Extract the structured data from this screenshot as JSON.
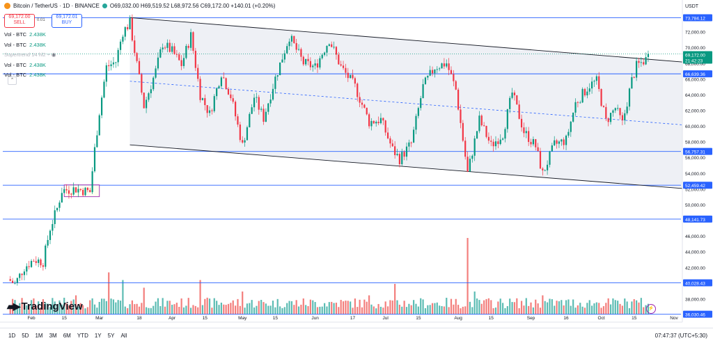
{
  "header": {
    "symbol": "Bitcoin / TetherUS · 1D · BINANCE",
    "ohlc": "O69,032.00 H69,519.52 L68,972.56 C69,172.00 +140.01 (+0.20%)"
  },
  "trade": {
    "sell_price": "69,172.00",
    "sell_label": "SELL",
    "spread": "0.01",
    "buy_price": "69,172.01",
    "buy_label": "BUY"
  },
  "indicators": [
    {
      "label": "Vol - BTC",
      "value": "2.438K"
    },
    {
      "label": "Vol - BTC",
      "value": "2.438K"
    },
    {
      "label": "Supertrend 14 hl2 ÷",
      "value": ""
    },
    {
      "label": "Vol - BTC",
      "value": "2.438K"
    },
    {
      "label": "Vol - BTC",
      "value": "2.438K"
    }
  ],
  "currency": "USDT",
  "logo_text": "TradingView",
  "ranges": [
    "1D",
    "5D",
    "1M",
    "3M",
    "6M",
    "YTD",
    "1Y",
    "5Y",
    "All"
  ],
  "clock": "07:47:37 (UTC+5:30)",
  "colors": {
    "up": "#089981",
    "down": "#f23645",
    "level": "#2962ff",
    "channel": "#131722",
    "box": "#9c27b0"
  },
  "chart_data": {
    "type": "candlestick",
    "title": "Bitcoin / TetherUS · 1D · BINANCE",
    "ylim": [
      36000,
      74800
    ],
    "y_ticks": [
      38000,
      40000,
      42000,
      44000,
      46000,
      48000,
      50000,
      52000,
      54000,
      56000,
      58000,
      60000,
      62000,
      64000,
      66000,
      68000,
      70000,
      72000
    ],
    "x_labels": [
      "Feb",
      "15",
      "Mar",
      "18",
      "Apr",
      "15",
      "May",
      "15",
      "Jun",
      "17",
      "Jul",
      "15",
      "Aug",
      "15",
      "Sep",
      "16",
      "Oct",
      "15",
      "Nov"
    ],
    "last_price": {
      "value": "69,172.00",
      "countdown": "21:42:23"
    },
    "horizontal_levels": [
      {
        "value": 73784.12,
        "label": "73,784.12"
      },
      {
        "value": 66639.36,
        "label": "66,639.36"
      },
      {
        "value": 56757.31,
        "label": "56,757.31"
      },
      {
        "value": 52459.42,
        "label": "52,459.42"
      },
      {
        "value": 48141.73,
        "label": "48,141.73"
      },
      {
        "value": 40028.43,
        "label": "40,028.43"
      },
      {
        "value": 36030.46,
        "label": "36,030.46"
      }
    ],
    "channel": {
      "upper": [
        {
          "date": "2024-03-14",
          "value": 73800
        },
        {
          "date": "2024-11-15",
          "value": 67900
        }
      ],
      "lower": [
        {
          "date": "2024-03-14",
          "value": 57600
        },
        {
          "date": "2024-11-15",
          "value": 51800
        }
      ],
      "mid": [
        {
          "date": "2024-03-14",
          "value": 65700
        },
        {
          "date": "2024-11-15",
          "value": 59900
        }
      ]
    },
    "consolidation_box": {
      "start": "2024-02-15",
      "end": "2024-03-01",
      "low": 51000,
      "high": 52500
    },
    "price_path": [
      [
        "2024-01-22",
        40500
      ],
      [
        "2024-01-25",
        39900
      ],
      [
        "2024-01-29",
        42000
      ],
      [
        "2024-02-02",
        43000
      ],
      [
        "2024-02-06",
        42700
      ],
      [
        "2024-02-09",
        47000
      ],
      [
        "2024-02-12",
        49500
      ],
      [
        "2024-02-14",
        51800
      ],
      [
        "2024-02-20",
        52000
      ],
      [
        "2024-02-26",
        51600
      ],
      [
        "2024-02-28",
        57000
      ],
      [
        "2024-03-01",
        61800
      ],
      [
        "2024-03-04",
        67500
      ],
      [
        "2024-03-08",
        68200
      ],
      [
        "2024-03-11",
        72000
      ],
      [
        "2024-03-14",
        73100
      ],
      [
        "2024-03-20",
        62500
      ],
      [
        "2024-03-25",
        67000
      ],
      [
        "2024-03-28",
        70500
      ],
      [
        "2024-04-01",
        69500
      ],
      [
        "2024-04-05",
        67800
      ],
      [
        "2024-04-09",
        71500
      ],
      [
        "2024-04-13",
        64000
      ],
      [
        "2024-04-17",
        61500
      ],
      [
        "2024-04-22",
        66800
      ],
      [
        "2024-04-26",
        63800
      ],
      [
        "2024-05-01",
        57500
      ],
      [
        "2024-05-06",
        63700
      ],
      [
        "2024-05-10",
        61000
      ],
      [
        "2024-05-15",
        66100
      ],
      [
        "2024-05-21",
        71400
      ],
      [
        "2024-05-27",
        68000
      ],
      [
        "2024-06-01",
        67500
      ],
      [
        "2024-06-07",
        71000
      ],
      [
        "2024-06-12",
        67500
      ],
      [
        "2024-06-18",
        65000
      ],
      [
        "2024-06-24",
        60500
      ],
      [
        "2024-06-29",
        60800
      ],
      [
        "2024-07-04",
        57000
      ],
      [
        "2024-07-07",
        55800
      ],
      [
        "2024-07-12",
        57800
      ],
      [
        "2024-07-17",
        65000
      ],
      [
        "2024-07-22",
        67500
      ],
      [
        "2024-07-27",
        68000
      ],
      [
        "2024-07-31",
        64600
      ],
      [
        "2024-08-05",
        54000
      ],
      [
        "2024-08-10",
        60800
      ],
      [
        "2024-08-15",
        57500
      ],
      [
        "2024-08-20",
        59000
      ],
      [
        "2024-08-24",
        64200
      ],
      [
        "2024-08-29",
        59300
      ],
      [
        "2024-09-03",
        57400
      ],
      [
        "2024-09-06",
        53900
      ],
      [
        "2024-09-11",
        57600
      ],
      [
        "2024-09-16",
        58200
      ],
      [
        "2024-09-20",
        62900
      ],
      [
        "2024-09-26",
        65200
      ],
      [
        "2024-09-29",
        65700
      ],
      [
        "2024-10-03",
        60600
      ],
      [
        "2024-10-07",
        62300
      ],
      [
        "2024-10-10",
        60300
      ],
      [
        "2024-10-14",
        65800
      ],
      [
        "2024-10-16",
        67600
      ],
      [
        "2024-10-20",
        68500
      ],
      [
        "2024-10-21",
        69172
      ]
    ],
    "volume": {
      "values": [
        [
          "2024-01-22",
          0.3
        ],
        [
          "2024-02-06",
          0.2
        ],
        [
          "2024-02-20",
          0.25
        ],
        [
          "2024-03-05",
          0.55
        ],
        [
          "2024-03-11",
          0.45
        ],
        [
          "2024-03-20",
          0.35
        ],
        [
          "2024-04-13",
          0.45
        ],
        [
          "2024-05-01",
          0.3
        ],
        [
          "2024-06-24",
          0.25
        ],
        [
          "2024-07-05",
          0.4
        ],
        [
          "2024-08-05",
          1.0
        ],
        [
          "2024-08-08",
          0.3
        ],
        [
          "2024-09-06",
          0.25
        ],
        [
          "2024-10-15",
          0.2
        ]
      ]
    }
  }
}
